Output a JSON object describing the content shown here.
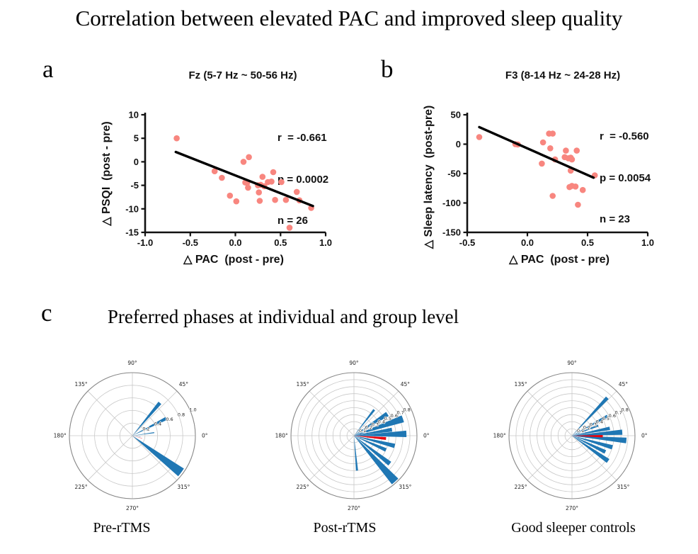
{
  "figure": {
    "title": "Correlation between elevated PAC and improved sleep quality",
    "panel_a_label": "a",
    "panel_b_label": "b",
    "panel_c_label": "c",
    "panel_c_title": "Preferred phases at individual and group level"
  },
  "colors": {
    "dot": "#F8867F",
    "trendline": "#000000",
    "axis": "#111111",
    "wedge_blue": "#1F77B4",
    "wedge_red": "#E8000B",
    "grid": "#C8C8C8",
    "outer_ring": "#8A8A8A"
  },
  "chart_data": [
    {
      "type": "scatter",
      "panel": "a",
      "title": "Fz (5-7 Hz ~ 50-56 Hz)",
      "stats": [
        "r  = -0.661",
        "p = 0.0002",
        "n = 26"
      ],
      "xlabel": "△ PAC  (post - pre)",
      "ylabel": "△ PSQI  (post - pre)",
      "xlim": [
        -1.0,
        1.0
      ],
      "ylim": [
        -15,
        10
      ],
      "xticks": [
        -1.0,
        -0.5,
        0.0,
        0.5,
        1.0
      ],
      "xtick_labels": [
        "-1.0",
        "-0.5",
        "0.0",
        "0.5",
        "1.0"
      ],
      "yticks": [
        10,
        5,
        0,
        -5,
        -10,
        -15
      ],
      "ytick_labels": [
        "10",
        "5",
        "0",
        "-5",
        "-10",
        "-15"
      ],
      "points": [
        [
          -0.65,
          5
        ],
        [
          -0.23,
          -2
        ],
        [
          -0.15,
          -3.4
        ],
        [
          -0.06,
          -7.2
        ],
        [
          0.01,
          -8.4
        ],
        [
          0.09,
          0
        ],
        [
          0.15,
          1
        ],
        [
          0.11,
          -4.4
        ],
        [
          0.13,
          -4.5
        ],
        [
          0.14,
          -5.5
        ],
        [
          0.25,
          -5
        ],
        [
          0.26,
          -6.5
        ],
        [
          0.27,
          -8.3
        ],
        [
          0.28,
          -4.9
        ],
        [
          0.3,
          -3.2
        ],
        [
          0.32,
          -5.2
        ],
        [
          0.36,
          -4.3
        ],
        [
          0.4,
          -4.2
        ],
        [
          0.42,
          -2.2
        ],
        [
          0.44,
          -8.1
        ],
        [
          0.51,
          -4.3
        ],
        [
          0.56,
          -8.1
        ],
        [
          0.6,
          -14
        ],
        [
          0.68,
          -6.4
        ],
        [
          0.71,
          -8.2
        ],
        [
          0.84,
          -9.8
        ]
      ],
      "trendline": {
        "x1": -0.66,
        "y1": 2.1,
        "x2": 0.86,
        "y2": -9.4
      }
    },
    {
      "type": "scatter",
      "panel": "b",
      "title": "F3 (8-14 Hz ~ 24-28 Hz)",
      "stats": [
        "r  = -0.560",
        "p = 0.0054",
        "n = 23"
      ],
      "xlabel": "△ PAC  (post - pre)",
      "ylabel": "△ Sleep latency  (post-pre)",
      "xlim": [
        -0.5,
        1.0
      ],
      "ylim": [
        -150,
        50
      ],
      "xticks": [
        -0.5,
        0.0,
        0.5,
        1.0
      ],
      "xtick_labels": [
        "-0.5",
        "0.0",
        "0.5",
        "1.0"
      ],
      "yticks": [
        50,
        0,
        -50,
        -100,
        -150
      ],
      "ytick_labels": [
        "50",
        "0",
        "-50",
        "-100",
        "-150"
      ],
      "points": [
        [
          -0.4,
          12
        ],
        [
          -0.1,
          0
        ],
        [
          -0.08,
          -0.5
        ],
        [
          0.13,
          3
        ],
        [
          0.18,
          18
        ],
        [
          0.21,
          18
        ],
        [
          0.19,
          -7
        ],
        [
          0.12,
          -33
        ],
        [
          0.23,
          -26
        ],
        [
          0.21,
          -88
        ],
        [
          0.31,
          -22
        ],
        [
          0.32,
          -11
        ],
        [
          0.34,
          -24
        ],
        [
          0.36,
          -23
        ],
        [
          0.37,
          -26
        ],
        [
          0.36,
          -45
        ],
        [
          0.35,
          -73
        ],
        [
          0.37,
          -71
        ],
        [
          0.4,
          -72
        ],
        [
          0.41,
          -11
        ],
        [
          0.42,
          -103
        ],
        [
          0.46,
          -78
        ],
        [
          0.56,
          -53
        ]
      ],
      "trendline": {
        "x1": -0.4,
        "y1": 29,
        "x2": 0.55,
        "y2": -57
      }
    },
    {
      "type": "polar_rose",
      "caption": "Pre-rTMS",
      "rmax": 1.0,
      "rings": [
        0.2,
        0.4,
        0.6,
        0.8,
        1.0
      ],
      "rings_labeled": [
        0.2,
        0.4,
        0.6,
        0.8,
        1.0
      ],
      "ring_labels": [
        "0.2",
        "0.4",
        "0.6",
        "0.8",
        "1.0"
      ],
      "rlabel_angle": 22,
      "angle_labels": [
        "0°",
        "45°",
        "90°",
        "135°",
        "180°",
        "225°",
        "270°",
        "315°"
      ],
      "wedges": [
        {
          "angle": 50,
          "radius": 0.68,
          "width": 5
        },
        {
          "angle": 27,
          "radius": 0.6,
          "width": 5
        },
        {
          "angle": 8,
          "radius": 0.35,
          "width": 2.5
        },
        {
          "angle": -6,
          "radius": 0.13,
          "width": 2
        },
        {
          "angle": -37,
          "radius": 0.97,
          "width": 9
        }
      ],
      "red_wedges": [
        {
          "angle": -15,
          "radius": 0.16,
          "width": 2
        }
      ]
    },
    {
      "type": "polar_rose",
      "caption": "Post-rTMS",
      "rmax": 0.9,
      "rings": [
        0.1,
        0.2,
        0.3,
        0.4,
        0.5,
        0.6,
        0.7,
        0.8
      ],
      "rings_labeled": [
        0.1,
        0.2,
        0.3,
        0.4,
        0.5,
        0.6,
        0.7,
        0.8
      ],
      "ring_labels": [
        "0.1",
        "0.2",
        "0.3",
        "0.4",
        "0.5",
        "0.6",
        "0.7",
        "0.8"
      ],
      "rlabel_angle": 25,
      "angle_labels": [
        "0°",
        "45°",
        "90°",
        "135°",
        "180°",
        "225°",
        "270°",
        "315°"
      ],
      "wedges": [
        {
          "angle": 52,
          "radius": 0.47,
          "width": 4
        },
        {
          "angle": 33,
          "radius": 0.57,
          "width": 7
        },
        {
          "angle": 19,
          "radius": 0.74,
          "width": 8
        },
        {
          "angle": 9,
          "radius": 0.55,
          "width": 6
        },
        {
          "angle": 2,
          "radius": 0.75,
          "width": 7
        },
        {
          "angle": -14,
          "radius": 0.6,
          "width": 6
        },
        {
          "angle": -24,
          "radius": 0.5,
          "width": 6
        },
        {
          "angle": -38,
          "radius": 0.65,
          "width": 6
        },
        {
          "angle": -48,
          "radius": 0.88,
          "width": 8
        },
        {
          "angle": -85,
          "radius": 0.5,
          "width": 3.5
        }
      ],
      "red_wedges": [
        {
          "angle": -5,
          "radius": 0.46,
          "width": 5
        }
      ]
    },
    {
      "type": "polar_rose",
      "caption": "Good sleeper controls",
      "rmax": 0.9,
      "rings": [
        0.1,
        0.2,
        0.3,
        0.4,
        0.5,
        0.6,
        0.7,
        0.8
      ],
      "rings_labeled": [
        0.1,
        0.2,
        0.3,
        0.4,
        0.5,
        0.6,
        0.7,
        0.8
      ],
      "ring_labels": [
        "0.1",
        "0.2",
        "0.3",
        "0.4",
        "0.5",
        "0.6",
        "0.7",
        "0.8"
      ],
      "rlabel_angle": 25,
      "angle_labels": [
        "0°",
        "45°",
        "90°",
        "135°",
        "180°",
        "225°",
        "270°",
        "315°"
      ],
      "wedges": [
        {
          "angle": 47,
          "radius": 0.74,
          "width": 4
        },
        {
          "angle": 29,
          "radius": 0.58,
          "width": 4
        },
        {
          "angle": 21,
          "radius": 0.4,
          "width": 4
        },
        {
          "angle": 11,
          "radius": 0.55,
          "width": 5
        },
        {
          "angle": 4,
          "radius": 0.72,
          "width": 6
        },
        {
          "angle": -5,
          "radius": 0.78,
          "width": 6
        },
        {
          "angle": -16,
          "radius": 0.6,
          "width": 6
        },
        {
          "angle": -26,
          "radius": 0.53,
          "width": 6
        },
        {
          "angle": -35,
          "radius": 0.63,
          "width": 6
        }
      ],
      "red_wedges": [
        {
          "angle": -1,
          "radius": 0.44,
          "width": 4.5
        }
      ]
    }
  ]
}
